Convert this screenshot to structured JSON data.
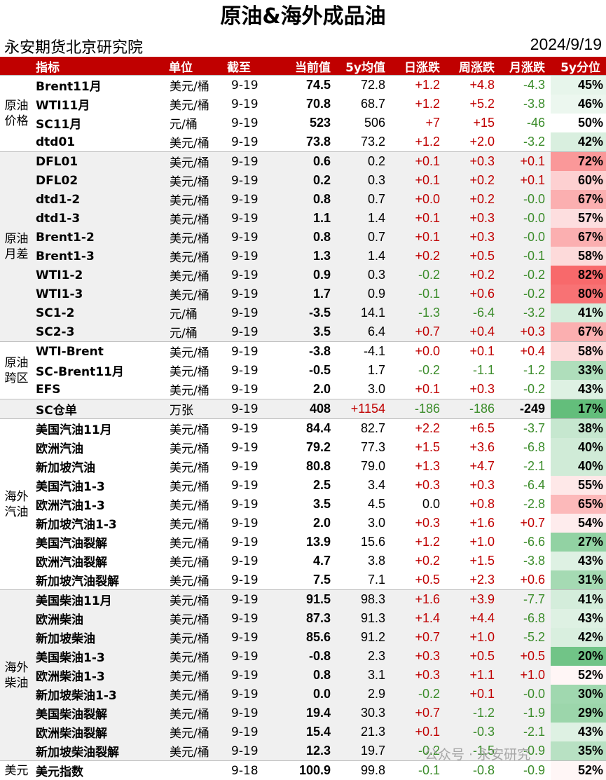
{
  "title": "原油&海外成品油",
  "org": "永安期货北京研究院",
  "date": "2024/9/19",
  "watermark": "公众号 · 永安研究",
  "headers": [
    "指标",
    "单位",
    "截至",
    "当前值",
    "5y均值",
    "日涨跌",
    "周涨跌",
    "月涨跌",
    "5y分位"
  ],
  "colors": {
    "header_bg": "#c00000",
    "up": "#c00000",
    "down": "#3b8c2a",
    "shade": "#f0f0f0"
  },
  "groups": [
    {
      "label": "原油价格",
      "shaded": false,
      "rows": [
        {
          "name": "Brent11月",
          "unit": "美元/桶",
          "date": "9-19",
          "cur": "74.5",
          "avg": "72.8",
          "d": "+1.2",
          "w": "+4.8",
          "m": "-4.3",
          "pct": "45%",
          "p": 45
        },
        {
          "name": "WTI11月",
          "unit": "美元/桶",
          "date": "9-19",
          "cur": "70.8",
          "avg": "68.7",
          "d": "+1.2",
          "w": "+5.2",
          "m": "-3.8",
          "pct": "46%",
          "p": 46
        },
        {
          "name": "SC11月",
          "unit": "元/桶",
          "date": "9-19",
          "cur": "523",
          "avg": "506",
          "d": "+7",
          "w": "+15",
          "m": "-46",
          "pct": "50%",
          "p": 50
        },
        {
          "name": "dtd01",
          "unit": "美元/桶",
          "date": "9-19",
          "cur": "73.8",
          "avg": "73.2",
          "d": "+1.2",
          "w": "+2.0",
          "m": "-3.2",
          "pct": "42%",
          "p": 42
        }
      ]
    },
    {
      "label": "原油月差",
      "shaded": true,
      "rows": [
        {
          "name": "DFL01",
          "unit": "美元/桶",
          "date": "9-19",
          "cur": "0.6",
          "avg": "0.2",
          "d": "+0.1",
          "w": "+0.3",
          "m": "+0.1",
          "pct": "72%",
          "p": 72
        },
        {
          "name": "DFL02",
          "unit": "美元/桶",
          "date": "9-19",
          "cur": "0.2",
          "avg": "0.3",
          "d": "+0.1",
          "w": "+0.2",
          "m": "+0.1",
          "pct": "60%",
          "p": 60
        },
        {
          "name": "dtd1-2",
          "unit": "美元/桶",
          "date": "9-19",
          "cur": "0.8",
          "avg": "0.7",
          "d": "+0.0",
          "w": "+0.2",
          "m": "-0.0",
          "pct": "67%",
          "p": 67
        },
        {
          "name": "dtd1-3",
          "unit": "美元/桶",
          "date": "9-19",
          "cur": "1.1",
          "avg": "1.4",
          "d": "+0.1",
          "w": "+0.3",
          "m": "-0.0",
          "pct": "57%",
          "p": 57
        },
        {
          "name": "Brent1-2",
          "unit": "美元/桶",
          "date": "9-19",
          "cur": "0.8",
          "avg": "0.7",
          "d": "+0.1",
          "w": "+0.3",
          "m": "-0.0",
          "pct": "67%",
          "p": 67
        },
        {
          "name": "Brent1-3",
          "unit": "美元/桶",
          "date": "9-19",
          "cur": "1.3",
          "avg": "1.4",
          "d": "+0.2",
          "w": "+0.5",
          "m": "-0.1",
          "pct": "58%",
          "p": 58
        },
        {
          "name": "WTI1-2",
          "unit": "美元/桶",
          "date": "9-19",
          "cur": "0.9",
          "avg": "0.3",
          "d": "-0.2",
          "w": "+0.2",
          "m": "-0.2",
          "pct": "82%",
          "p": 82
        },
        {
          "name": "WTI1-3",
          "unit": "美元/桶",
          "date": "9-19",
          "cur": "1.7",
          "avg": "0.9",
          "d": "-0.1",
          "w": "+0.6",
          "m": "-0.2",
          "pct": "80%",
          "p": 80
        },
        {
          "name": "SC1-2",
          "unit": "元/桶",
          "date": "9-19",
          "cur": "-3.5",
          "avg": "14.1",
          "d": "-1.3",
          "w": "-6.4",
          "m": "-3.2",
          "pct": "41%",
          "p": 41
        },
        {
          "name": "SC2-3",
          "unit": "元/桶",
          "date": "9-19",
          "cur": "3.5",
          "avg": "6.4",
          "d": "+0.7",
          "w": "+0.4",
          "m": "+0.3",
          "pct": "67%",
          "p": 67
        }
      ]
    },
    {
      "label": "原油跨区",
      "shaded": false,
      "rows": [
        {
          "name": "WTI-Brent",
          "unit": "美元/桶",
          "date": "9-19",
          "cur": "-3.8",
          "avg": "-4.1",
          "d": "+0.0",
          "w": "+0.1",
          "m": "+0.4",
          "pct": "58%",
          "p": 58
        },
        {
          "name": "SC-Brent11月",
          "unit": "美元/桶",
          "date": "9-19",
          "cur": "-0.5",
          "avg": "1.7",
          "d": "-0.2",
          "w": "-1.1",
          "m": "-1.2",
          "pct": "33%",
          "p": 33
        },
        {
          "name": "EFS",
          "unit": "美元/桶",
          "date": "9-19",
          "cur": "2.0",
          "avg": "3.0",
          "d": "+0.1",
          "w": "+0.3",
          "m": "-0.2",
          "pct": "43%",
          "p": 43
        }
      ]
    },
    {
      "label": "",
      "shaded": true,
      "rows": [
        {
          "name": "SC仓单",
          "unit": "万张",
          "date": "9-19",
          "cur": "408",
          "avg": "+1154",
          "avgColor": "red",
          "d": "-186",
          "w": "-186",
          "m": "-249",
          "mColor": "blk",
          "pct": "17%",
          "p": 17
        }
      ]
    },
    {
      "label": "海外汽油",
      "shaded": false,
      "rows": [
        {
          "name": "美国汽油11月",
          "unit": "美元/桶",
          "date": "9-19",
          "cur": "84.4",
          "avg": "82.7",
          "d": "+2.2",
          "w": "+6.5",
          "m": "-3.7",
          "pct": "38%",
          "p": 38
        },
        {
          "name": "欧洲汽油",
          "unit": "美元/桶",
          "date": "9-19",
          "cur": "79.2",
          "avg": "77.3",
          "d": "+1.5",
          "w": "+3.6",
          "m": "-6.8",
          "pct": "40%",
          "p": 40
        },
        {
          "name": "新加坡汽油",
          "unit": "美元/桶",
          "date": "9-19",
          "cur": "80.8",
          "avg": "79.0",
          "d": "+1.3",
          "w": "+4.7",
          "m": "-2.1",
          "pct": "40%",
          "p": 40
        },
        {
          "name": "美国汽油1-3",
          "unit": "美元/桶",
          "date": "9-19",
          "cur": "2.5",
          "avg": "3.4",
          "d": "+0.3",
          "w": "+0.3",
          "m": "-6.4",
          "pct": "55%",
          "p": 55
        },
        {
          "name": "欧洲汽油1-3",
          "unit": "美元/桶",
          "date": "9-19",
          "cur": "3.5",
          "avg": "4.5",
          "d": "0.0",
          "dColor": "blk0",
          "w": "+0.8",
          "m": "-2.8",
          "pct": "65%",
          "p": 65
        },
        {
          "name": "新加坡汽油1-3",
          "unit": "美元/桶",
          "date": "9-19",
          "cur": "2.0",
          "avg": "3.0",
          "d": "+0.3",
          "w": "+1.6",
          "m": "+0.7",
          "pct": "54%",
          "p": 54
        },
        {
          "name": "美国汽油裂解",
          "unit": "美元/桶",
          "date": "9-19",
          "cur": "13.9",
          "avg": "15.6",
          "d": "+1.2",
          "w": "+1.0",
          "m": "-6.6",
          "pct": "27%",
          "p": 27
        },
        {
          "name": "欧洲汽油裂解",
          "unit": "美元/桶",
          "date": "9-19",
          "cur": "4.7",
          "avg": "3.8",
          "d": "+0.2",
          "w": "+1.5",
          "m": "-3.8",
          "pct": "43%",
          "p": 43
        },
        {
          "name": "新加坡汽油裂解",
          "unit": "美元/桶",
          "date": "9-19",
          "cur": "7.5",
          "avg": "7.1",
          "d": "+0.5",
          "w": "+2.3",
          "m": "+0.6",
          "pct": "31%",
          "p": 31
        }
      ]
    },
    {
      "label": "海外柴油",
      "shaded": true,
      "rows": [
        {
          "name": "美国柴油11月",
          "unit": "美元/桶",
          "date": "9-19",
          "cur": "91.5",
          "avg": "98.3",
          "d": "+1.6",
          "w": "+3.9",
          "m": "-7.7",
          "pct": "41%",
          "p": 41
        },
        {
          "name": "欧洲柴油",
          "unit": "美元/桶",
          "date": "9-19",
          "cur": "87.3",
          "avg": "91.3",
          "d": "+1.4",
          "w": "+4.4",
          "m": "-6.8",
          "pct": "43%",
          "p": 43
        },
        {
          "name": "新加坡柴油",
          "unit": "美元/桶",
          "date": "9-19",
          "cur": "85.6",
          "avg": "91.2",
          "d": "+0.7",
          "w": "+1.0",
          "m": "-5.2",
          "pct": "42%",
          "p": 42
        },
        {
          "name": "美国柴油1-3",
          "unit": "美元/桶",
          "date": "9-19",
          "cur": "-0.8",
          "avg": "2.3",
          "d": "+0.3",
          "w": "+0.5",
          "m": "+0.5",
          "pct": "20%",
          "p": 20
        },
        {
          "name": "欧洲柴油1-3",
          "unit": "美元/桶",
          "date": "9-19",
          "cur": "0.8",
          "avg": "3.1",
          "d": "+0.3",
          "w": "+1.1",
          "m": "+1.0",
          "pct": "52%",
          "p": 52
        },
        {
          "name": "新加坡柴油1-3",
          "unit": "美元/桶",
          "date": "9-19",
          "cur": "0.0",
          "avg": "2.9",
          "d": "-0.2",
          "w": "+0.1",
          "m": "-0.0",
          "pct": "30%",
          "p": 30
        },
        {
          "name": "美国柴油裂解",
          "unit": "美元/桶",
          "date": "9-19",
          "cur": "19.4",
          "avg": "30.3",
          "d": "+0.7",
          "w": "-1.2",
          "m": "-1.9",
          "pct": "29%",
          "p": 29
        },
        {
          "name": "欧洲柴油裂解",
          "unit": "美元/桶",
          "date": "9-19",
          "cur": "15.4",
          "avg": "21.3",
          "d": "+0.1",
          "w": "-0.3",
          "m": "-2.1",
          "pct": "43%",
          "p": 43
        },
        {
          "name": "新加坡柴油裂解",
          "unit": "美元/桶",
          "date": "9-19",
          "cur": "12.3",
          "avg": "19.7",
          "d": "-0.2",
          "w": "-1.5",
          "m": "-0.9",
          "pct": "35%",
          "p": 35
        }
      ]
    },
    {
      "label": "美元",
      "shaded": false,
      "rows": [
        {
          "name": "美元指数",
          "unit": "",
          "date": "9-18",
          "cur": "100.9",
          "avg": "99.8",
          "d": "-0.1",
          "w": "-0.8",
          "m": "-0.9",
          "pct": "52%",
          "p": 52
        }
      ]
    }
  ]
}
